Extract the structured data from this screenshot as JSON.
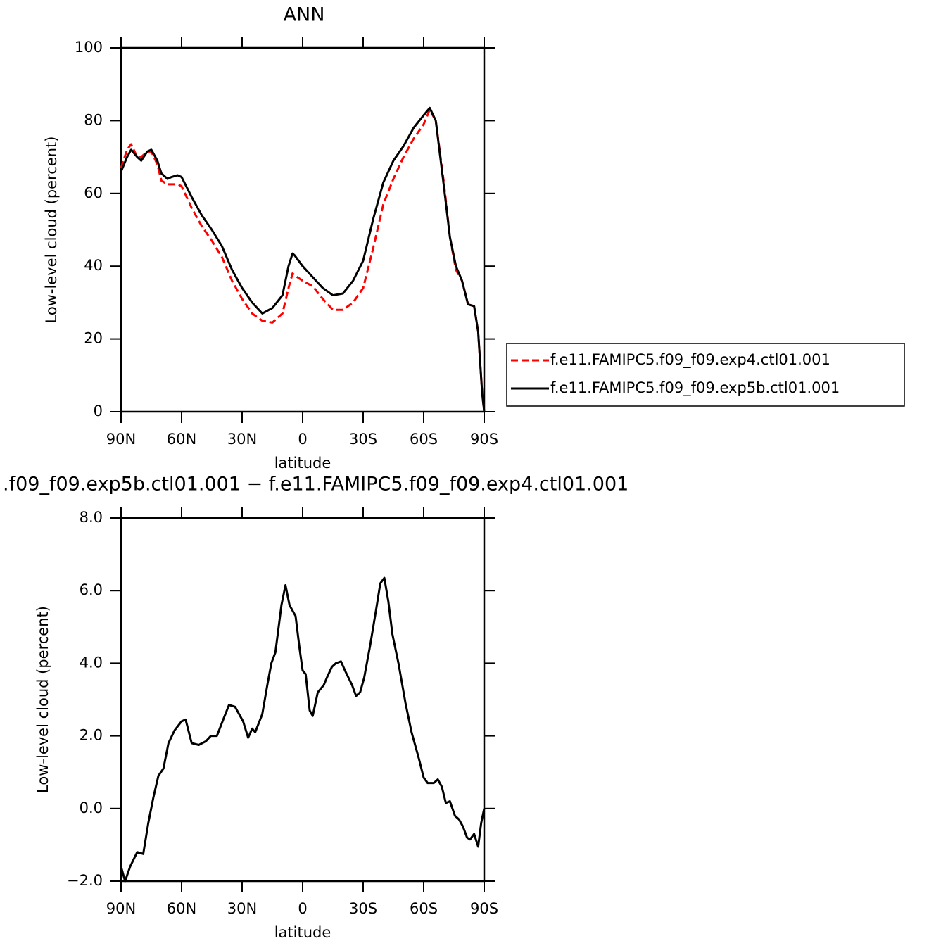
{
  "chart_data": [
    {
      "type": "line",
      "title": "ANN",
      "xlabel": "latitude",
      "ylabel": "Low-level cloud (percent)",
      "x": [
        90,
        87,
        85,
        82,
        80,
        77,
        75,
        72,
        70,
        67,
        65,
        62,
        60,
        55,
        50,
        45,
        40,
        35,
        30,
        25,
        20,
        15,
        10,
        7,
        5,
        4,
        0,
        -5,
        -10,
        -15,
        -20,
        -25,
        -30,
        -35,
        -40,
        -45,
        -50,
        -55,
        -60,
        -63,
        -66,
        -70,
        -73,
        -76,
        -79,
        -82,
        -85,
        -87,
        -89,
        -90
      ],
      "series": [
        {
          "name": "f.e11.FAMIPC5.f09_f09.exp4.ctl01.001",
          "color": "#ff0000",
          "line_style": "dashed",
          "values": [
            67,
            72,
            73.5,
            70,
            70,
            71.5,
            71.5,
            68,
            63.5,
            62.5,
            62.5,
            62.5,
            62,
            56,
            51,
            47,
            42.5,
            36,
            31,
            27,
            25,
            24.5,
            27,
            34,
            38,
            37.5,
            36,
            34.5,
            31,
            28,
            28,
            30,
            34,
            45,
            57,
            64,
            70,
            75,
            79,
            83,
            80,
            63,
            48,
            39,
            36,
            29.5,
            29,
            22,
            5,
            0
          ]
        },
        {
          "name": "f.e11.FAMIPC5.f09_f09.exp5b.ctl01.001",
          "color": "#000000",
          "line_style": "solid",
          "values": [
            66,
            70,
            72,
            70,
            69,
            71.5,
            72,
            69,
            65.5,
            64,
            64.5,
            65,
            64.5,
            59,
            54,
            50,
            45.5,
            39,
            34,
            30,
            27,
            28.5,
            32,
            40,
            43.5,
            43,
            40,
            37,
            34,
            32,
            32.5,
            36,
            41.5,
            53,
            63,
            69,
            73,
            78,
            81.5,
            83.5,
            80,
            62,
            48,
            40,
            36,
            29.5,
            29,
            22,
            5,
            0
          ]
        }
      ],
      "xlim": [
        90,
        -90
      ],
      "xticks": [
        {
          "value": 90,
          "label": "90N"
        },
        {
          "value": 60,
          "label": "60N"
        },
        {
          "value": 30,
          "label": "30N"
        },
        0,
        {
          "value": -30,
          "label": "30S"
        },
        {
          "value": -60,
          "label": "60S"
        },
        {
          "value": -90,
          "label": "90S"
        }
      ],
      "ylim": [
        0,
        100
      ],
      "yticks": [
        0,
        20,
        40,
        60,
        80,
        100
      ],
      "legend": "right"
    },
    {
      "type": "line",
      "title": ".f09_f09.exp5b.ctl01.001 − f.e11.FAMIPC5.f09_f09.exp4.ctl01.001",
      "xlabel": "latitude",
      "ylabel": "Low-level cloud (percent)",
      "x": [
        90,
        88,
        85.5,
        82,
        79,
        76.5,
        74,
        71.5,
        69,
        66.5,
        63.5,
        60,
        58,
        55,
        51.5,
        48,
        45.5,
        42.5,
        39,
        36.5,
        33.5,
        29.5,
        27,
        25,
        23.5,
        20,
        17.5,
        15.5,
        13.5,
        10.5,
        8.5,
        6.5,
        3.5,
        1.5,
        0,
        -1.5,
        -3.5,
        -5,
        -7.5,
        -10.5,
        -12,
        -14.5,
        -16.5,
        -19,
        -21,
        -24.5,
        -26.5,
        -28.5,
        -30.5,
        -33.5,
        -36.5,
        -38.5,
        -40.5,
        -42.5,
        -44.5,
        -47.5,
        -51,
        -54,
        -57.5,
        -60,
        -62,
        -65,
        -67,
        -69,
        -71,
        -73,
        -75.5,
        -77.5,
        -79.5,
        -81.5,
        -83,
        -85,
        -87,
        -88.5,
        -90
      ],
      "series": [
        {
          "color": "#000000",
          "line_style": "solid",
          "values": [
            -1.6,
            -2.0,
            -1.6,
            -1.2,
            -1.25,
            -0.4,
            0.3,
            0.9,
            1.1,
            1.8,
            2.15,
            2.4,
            2.45,
            1.8,
            1.75,
            1.85,
            2.0,
            2.0,
            2.5,
            2.85,
            2.8,
            2.4,
            1.95,
            2.2,
            2.1,
            2.6,
            3.4,
            4.0,
            4.3,
            5.6,
            6.15,
            5.6,
            5.3,
            4.4,
            3.8,
            3.7,
            2.7,
            2.55,
            3.2,
            3.4,
            3.6,
            3.9,
            4.0,
            4.05,
            3.8,
            3.4,
            3.1,
            3.2,
            3.6,
            4.5,
            5.5,
            6.2,
            6.35,
            5.7,
            4.8,
            4.0,
            2.9,
            2.1,
            1.4,
            0.85,
            0.7,
            0.7,
            0.8,
            0.6,
            0.15,
            0.2,
            -0.2,
            -0.3,
            -0.5,
            -0.8,
            -0.85,
            -0.7,
            -1.05,
            -0.4,
            0
          ]
        }
      ],
      "xlim": [
        90,
        -90
      ],
      "xticks": [
        {
          "value": 90,
          "label": "90N"
        },
        {
          "value": 60,
          "label": "60N"
        },
        {
          "value": 30,
          "label": "30N"
        },
        0,
        {
          "value": -30,
          "label": "30S"
        },
        {
          "value": -60,
          "label": "60S"
        },
        {
          "value": -90,
          "label": "90S"
        }
      ],
      "ylim": [
        -2,
        8
      ],
      "yticks": [
        {
          "value": -2,
          "label": "−2.0"
        },
        {
          "value": 0,
          "label": "0.0"
        },
        {
          "value": 2,
          "label": "2.0"
        },
        {
          "value": 4,
          "label": "4.0"
        },
        {
          "value": 6,
          "label": "6.0"
        },
        {
          "value": 8,
          "label": "8.0"
        }
      ]
    }
  ]
}
